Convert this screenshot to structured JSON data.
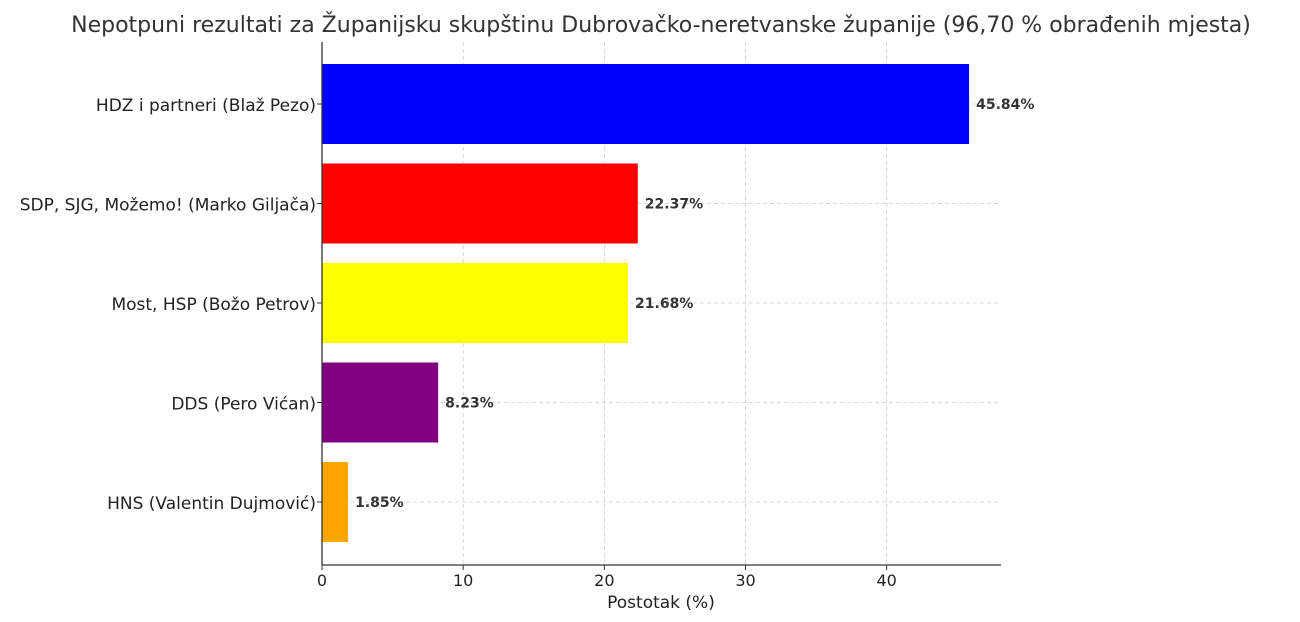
{
  "chart_data": {
    "type": "bar",
    "orientation": "horizontal",
    "title": "Nepotpuni rezultati za Županijsku skupštinu Dubrovačko-neretvanske županije (96,70 % obrađenih mjesta)",
    "xlabel": "Postotak (%)",
    "ylabel": "",
    "xlim": [
      0,
      48.1
    ],
    "xticks": [
      0,
      10,
      20,
      30,
      40
    ],
    "grid": true,
    "categories": [
      "HDZ i partneri (Blaž Pezo)",
      "SDP, SJG, Možemo! (Marko Giljača)",
      "Most, HSP (Božo Petrov)",
      "DDS (Pero Vićan)",
      "HNS (Valentin Dujmović)"
    ],
    "values": [
      45.84,
      22.37,
      21.68,
      8.23,
      1.85
    ],
    "labels": [
      "45.84%",
      "22.37%",
      "21.68%",
      "8.23%",
      "1.85%"
    ],
    "colors": [
      "#0000ff",
      "#ff0000",
      "#ffff00",
      "#800080",
      "#ffa500"
    ]
  }
}
